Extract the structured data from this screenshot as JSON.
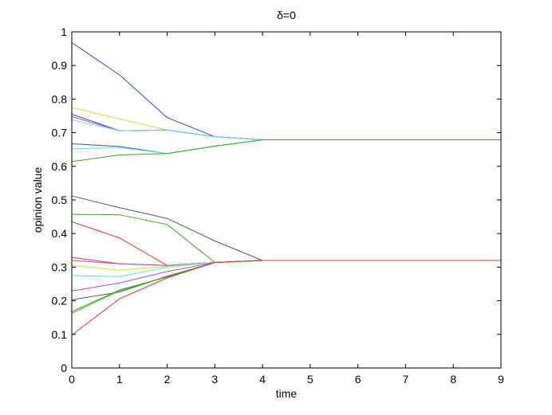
{
  "chart_data": {
    "type": "line",
    "title": "δ=0",
    "xlabel": "time",
    "ylabel": "opinion value",
    "xlim": [
      0,
      9
    ],
    "ylim": [
      0,
      1
    ],
    "xticks": [
      "0",
      "1",
      "2",
      "3",
      "4",
      "5",
      "6",
      "7",
      "8",
      "9"
    ],
    "yticks": [
      "0",
      "0.1",
      "0.2",
      "0.3",
      "0.4",
      "0.5",
      "0.6",
      "0.7",
      "0.8",
      "0.9",
      "1"
    ],
    "grid": false,
    "legend": false,
    "x": [
      0,
      1,
      2,
      3,
      4,
      5,
      6,
      7,
      8,
      9
    ],
    "series": [
      {
        "color": "#2f44e6",
        "values": [
          0.968,
          0.872,
          0.745,
          0.688,
          0.679,
          0.679,
          0.679,
          0.679,
          0.679,
          0.679
        ]
      },
      {
        "color": "#c4e03c",
        "values": [
          0.775,
          0.741,
          0.708,
          0.688,
          0.679,
          0.679,
          0.679,
          0.679,
          0.679,
          0.679
        ]
      },
      {
        "color": "#3a4fd8",
        "values": [
          0.755,
          0.706,
          0.708,
          0.688,
          0.679,
          0.679,
          0.679,
          0.679,
          0.679,
          0.679
        ]
      },
      {
        "color": "#a84ee0",
        "values": [
          0.748,
          0.706,
          0.708,
          0.688,
          0.679,
          0.679,
          0.679,
          0.679,
          0.679,
          0.679
        ]
      },
      {
        "color": "#61e3d2",
        "values": [
          0.738,
          0.706,
          0.708,
          0.688,
          0.679,
          0.679,
          0.679,
          0.679,
          0.679,
          0.679
        ]
      },
      {
        "color": "#3a4fd8",
        "values": [
          0.667,
          0.659,
          0.638,
          0.66,
          0.679,
          0.679,
          0.679,
          0.679,
          0.679,
          0.679
        ]
      },
      {
        "color": "#61e3d2",
        "values": [
          0.652,
          0.656,
          0.638,
          0.66,
          0.679,
          0.679,
          0.679,
          0.679,
          0.679,
          0.679
        ]
      },
      {
        "color": "#3aaa22",
        "values": [
          0.614,
          0.634,
          0.638,
          0.66,
          0.679,
          0.679,
          0.679,
          0.679,
          0.679,
          0.679
        ]
      },
      {
        "color": "#5a5a5a",
        "values": [
          0.512,
          0.477,
          0.445,
          0.378,
          0.32,
          0.32,
          0.32,
          0.32,
          0.32,
          0.32
        ]
      },
      {
        "color": "#3aaa22",
        "values": [
          0.457,
          0.456,
          0.427,
          0.314,
          0.32,
          0.32,
          0.32,
          0.32,
          0.32,
          0.32
        ]
      },
      {
        "color": "#e8322a",
        "values": [
          0.435,
          0.387,
          0.305,
          0.314,
          0.32,
          0.32,
          0.32,
          0.32,
          0.32,
          0.32
        ]
      },
      {
        "color": "#e8322a",
        "values": [
          0.329,
          0.31,
          0.305,
          0.314,
          0.32,
          0.32,
          0.32,
          0.32,
          0.32,
          0.32
        ]
      },
      {
        "color": "#a84ee0",
        "values": [
          0.32,
          0.31,
          0.305,
          0.314,
          0.32,
          0.32,
          0.32,
          0.32,
          0.32,
          0.32
        ]
      },
      {
        "color": "#c4e03c",
        "values": [
          0.305,
          0.291,
          0.303,
          0.314,
          0.32,
          0.32,
          0.32,
          0.32,
          0.32,
          0.32
        ]
      },
      {
        "color": "#61e3d2",
        "values": [
          0.275,
          0.272,
          0.3,
          0.314,
          0.32,
          0.32,
          0.32,
          0.32,
          0.32,
          0.32
        ]
      },
      {
        "color": "#a84ee0",
        "values": [
          0.229,
          0.253,
          0.287,
          0.314,
          0.32,
          0.32,
          0.32,
          0.32,
          0.32,
          0.32
        ]
      },
      {
        "color": "#5a5a5a",
        "values": [
          0.203,
          0.226,
          0.273,
          0.314,
          0.32,
          0.32,
          0.32,
          0.32,
          0.32,
          0.32
        ]
      },
      {
        "color": "#3aaa22",
        "values": [
          0.168,
          0.232,
          0.271,
          0.314,
          0.32,
          0.32,
          0.32,
          0.32,
          0.32,
          0.32
        ]
      },
      {
        "color": "#3aaa22",
        "values": [
          0.163,
          0.23,
          0.271,
          0.314,
          0.32,
          0.32,
          0.32,
          0.32,
          0.32,
          0.32
        ]
      },
      {
        "color": "#e8322a",
        "values": [
          0.098,
          0.206,
          0.268,
          0.314,
          0.32,
          0.32,
          0.32,
          0.32,
          0.32,
          0.32
        ]
      }
    ]
  }
}
